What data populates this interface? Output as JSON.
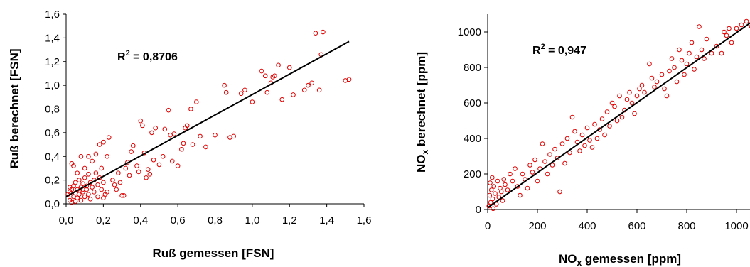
{
  "chart_data": [
    {
      "type": "scatter",
      "xlabel": "Ruß gemessen [FSN]",
      "ylabel": "Ruß berechnet [FSN]",
      "xlim": [
        0,
        1.6
      ],
      "ylim": [
        0,
        1.6
      ],
      "x_ticks": [
        "0,0",
        "0,2",
        "0,4",
        "0,6",
        "0,8",
        "1,0",
        "1,2",
        "1,4",
        "1,6"
      ],
      "y_ticks": [
        "0,0",
        "0,2",
        "0,4",
        "0,6",
        "0,8",
        "1,0",
        "1,2",
        "1,4",
        "1,6"
      ],
      "annotation": {
        "base": "R",
        "sup": "2",
        "rest": " = 0,8706"
      },
      "fit_line": [
        [
          0.0,
          0.06
        ],
        [
          1.52,
          1.37
        ]
      ],
      "points": [
        [
          0.01,
          0.08
        ],
        [
          0.02,
          0.03
        ],
        [
          0.02,
          0.1
        ],
        [
          0.03,
          0.01
        ],
        [
          0.03,
          0.12
        ],
        [
          0.04,
          0.06
        ],
        [
          0.04,
          0.15
        ],
        [
          0.05,
          0.02
        ],
        [
          0.05,
          0.09
        ],
        [
          0.05,
          0.18
        ],
        [
          0.06,
          0.05
        ],
        [
          0.06,
          0.12
        ],
        [
          0.07,
          0.08
        ],
        [
          0.07,
          0.2
        ],
        [
          0.08,
          0.03
        ],
        [
          0.08,
          0.14
        ],
        [
          0.09,
          0.1
        ],
        [
          0.09,
          0.17
        ],
        [
          0.1,
          0.06
        ],
        [
          0.1,
          0.22
        ],
        [
          0.11,
          0.12
        ],
        [
          0.11,
          0.15
        ],
        [
          0.12,
          0.08
        ],
        [
          0.12,
          0.25
        ],
        [
          0.13,
          0.18
        ],
        [
          0.13,
          0.04
        ],
        [
          0.14,
          0.14
        ],
        [
          0.15,
          0.2
        ],
        [
          0.15,
          0.1
        ],
        [
          0.16,
          0.26
        ],
        [
          0.17,
          0.16
        ],
        [
          0.17,
          0.06
        ],
        [
          0.18,
          0.22
        ],
        [
          0.19,
          0.12
        ],
        [
          0.19,
          0.3
        ],
        [
          0.2,
          0.18
        ],
        [
          0.2,
          0.05
        ],
        [
          0.21,
          0.08
        ],
        [
          0.22,
          0.4
        ],
        [
          0.22,
          0.1
        ],
        [
          0.03,
          0.34
        ],
        [
          0.04,
          0.32
        ],
        [
          0.06,
          0.26
        ],
        [
          0.08,
          0.4
        ],
        [
          0.1,
          0.3
        ],
        [
          0.12,
          0.4
        ],
        [
          0.14,
          0.36
        ],
        [
          0.16,
          0.42
        ],
        [
          0.18,
          0.5
        ],
        [
          0.2,
          0.52
        ],
        [
          0.23,
          0.56
        ],
        [
          0.25,
          0.2
        ],
        [
          0.26,
          0.16
        ],
        [
          0.27,
          0.12
        ],
        [
          0.28,
          0.26
        ],
        [
          0.29,
          0.18
        ],
        [
          0.3,
          0.07
        ],
        [
          0.31,
          0.07
        ],
        [
          0.32,
          0.3
        ],
        [
          0.33,
          0.35
        ],
        [
          0.34,
          0.24
        ],
        [
          0.35,
          0.44
        ],
        [
          0.36,
          0.49
        ],
        [
          0.38,
          0.32
        ],
        [
          0.39,
          0.27
        ],
        [
          0.4,
          0.7
        ],
        [
          0.41,
          0.66
        ],
        [
          0.42,
          0.43
        ],
        [
          0.43,
          0.22
        ],
        [
          0.44,
          0.29
        ],
        [
          0.45,
          0.25
        ],
        [
          0.46,
          0.6
        ],
        [
          0.47,
          0.37
        ],
        [
          0.48,
          0.64
        ],
        [
          0.5,
          0.33
        ],
        [
          0.52,
          0.4
        ],
        [
          0.53,
          0.63
        ],
        [
          0.55,
          0.79
        ],
        [
          0.56,
          0.58
        ],
        [
          0.57,
          0.36
        ],
        [
          0.58,
          0.59
        ],
        [
          0.6,
          0.32
        ],
        [
          0.62,
          0.46
        ],
        [
          0.63,
          0.51
        ],
        [
          0.64,
          0.64
        ],
        [
          0.65,
          0.66
        ],
        [
          0.67,
          0.8
        ],
        [
          0.68,
          0.5
        ],
        [
          0.7,
          0.86
        ],
        [
          0.72,
          0.57
        ],
        [
          0.75,
          0.48
        ],
        [
          0.8,
          0.58
        ],
        [
          0.85,
          1.0
        ],
        [
          0.86,
          0.94
        ],
        [
          0.88,
          0.56
        ],
        [
          0.9,
          0.57
        ],
        [
          0.94,
          0.93
        ],
        [
          0.96,
          0.96
        ],
        [
          1.0,
          0.86
        ],
        [
          1.05,
          1.12
        ],
        [
          1.07,
          1.08
        ],
        [
          1.08,
          0.94
        ],
        [
          1.1,
          1.02
        ],
        [
          1.11,
          1.07
        ],
        [
          1.12,
          1.08
        ],
        [
          1.14,
          1.17
        ],
        [
          1.16,
          0.88
        ],
        [
          1.2,
          1.15
        ],
        [
          1.22,
          0.92
        ],
        [
          1.28,
          0.96
        ],
        [
          1.3,
          1.0
        ],
        [
          1.32,
          1.02
        ],
        [
          1.34,
          1.44
        ],
        [
          1.36,
          0.96
        ],
        [
          1.37,
          1.26
        ],
        [
          1.38,
          1.45
        ],
        [
          1.5,
          1.04
        ],
        [
          1.52,
          1.05
        ],
        [
          0.02,
          0.14
        ],
        [
          0.09,
          0.12
        ]
      ]
    },
    {
      "type": "scatter",
      "xlabel": "NO",
      "xlabel_sub": "x",
      "xlabel_rest": " gemessen [ppm]",
      "ylabel": "NO",
      "ylabel_sub": "x",
      "ylabel_rest": " berechnet [ppm]",
      "xlim": [
        0,
        1100
      ],
      "ylim": [
        0,
        1100
      ],
      "x_ticks": [
        "0",
        "200",
        "400",
        "600",
        "800",
        "1000"
      ],
      "y_ticks": [
        "0",
        "200",
        "400",
        "600",
        "800",
        "1000"
      ],
      "annotation": {
        "base": "R",
        "sup": "2",
        "rest": " = 0,947"
      },
      "fit_line": [
        [
          0,
          10
        ],
        [
          1100,
          1095
        ]
      ],
      "points": [
        [
          5,
          20
        ],
        [
          8,
          80
        ],
        [
          10,
          150
        ],
        [
          12,
          40
        ],
        [
          15,
          110
        ],
        [
          18,
          180
        ],
        [
          20,
          60
        ],
        [
          22,
          5
        ],
        [
          25,
          130
        ],
        [
          30,
          90
        ],
        [
          35,
          30
        ],
        [
          40,
          160
        ],
        [
          45,
          70
        ],
        [
          50,
          120
        ],
        [
          55,
          100
        ],
        [
          60,
          50
        ],
        [
          65,
          170
        ],
        [
          70,
          140
        ],
        [
          80,
          110
        ],
        [
          90,
          200
        ],
        [
          100,
          160
        ],
        [
          110,
          230
        ],
        [
          120,
          130
        ],
        [
          130,
          80
        ],
        [
          140,
          200
        ],
        [
          150,
          170
        ],
        [
          160,
          120
        ],
        [
          170,
          250
        ],
        [
          180,
          210
        ],
        [
          190,
          280
        ],
        [
          200,
          160
        ],
        [
          210,
          230
        ],
        [
          220,
          370
        ],
        [
          230,
          270
        ],
        [
          240,
          200
        ],
        [
          250,
          310
        ],
        [
          260,
          250
        ],
        [
          270,
          340
        ],
        [
          280,
          290
        ],
        [
          290,
          100
        ],
        [
          300,
          370
        ],
        [
          310,
          260
        ],
        [
          320,
          400
        ],
        [
          330,
          320
        ],
        [
          340,
          520
        ],
        [
          350,
          440
        ],
        [
          360,
          380
        ],
        [
          370,
          330
        ],
        [
          380,
          420
        ],
        [
          390,
          360
        ],
        [
          400,
          460
        ],
        [
          410,
          390
        ],
        [
          420,
          350
        ],
        [
          430,
          480
        ],
        [
          440,
          400
        ],
        [
          450,
          450
        ],
        [
          460,
          510
        ],
        [
          470,
          420
        ],
        [
          480,
          550
        ],
        [
          490,
          470
        ],
        [
          500,
          600
        ],
        [
          510,
          580
        ],
        [
          520,
          500
        ],
        [
          530,
          640
        ],
        [
          540,
          520
        ],
        [
          550,
          560
        ],
        [
          560,
          620
        ],
        [
          570,
          660
        ],
        [
          580,
          600
        ],
        [
          590,
          540
        ],
        [
          600,
          640
        ],
        [
          610,
          680
        ],
        [
          620,
          700
        ],
        [
          630,
          660
        ],
        [
          650,
          820
        ],
        [
          660,
          740
        ],
        [
          670,
          690
        ],
        [
          680,
          720
        ],
        [
          700,
          760
        ],
        [
          710,
          680
        ],
        [
          720,
          640
        ],
        [
          730,
          780
        ],
        [
          740,
          850
        ],
        [
          750,
          800
        ],
        [
          760,
          720
        ],
        [
          770,
          900
        ],
        [
          780,
          840
        ],
        [
          790,
          760
        ],
        [
          800,
          820
        ],
        [
          810,
          880
        ],
        [
          820,
          940
        ],
        [
          830,
          790
        ],
        [
          840,
          860
        ],
        [
          850,
          1030
        ],
        [
          860,
          900
        ],
        [
          870,
          850
        ],
        [
          880,
          960
        ],
        [
          900,
          880
        ],
        [
          920,
          920
        ],
        [
          940,
          880
        ],
        [
          950,
          1000
        ],
        [
          960,
          980
        ],
        [
          970,
          1020
        ],
        [
          980,
          940
        ],
        [
          1000,
          1020
        ],
        [
          1020,
          1040
        ],
        [
          1040,
          1060
        ],
        [
          1060,
          1030
        ],
        [
          1080,
          1070
        ],
        [
          1090,
          1020
        ]
      ]
    }
  ]
}
